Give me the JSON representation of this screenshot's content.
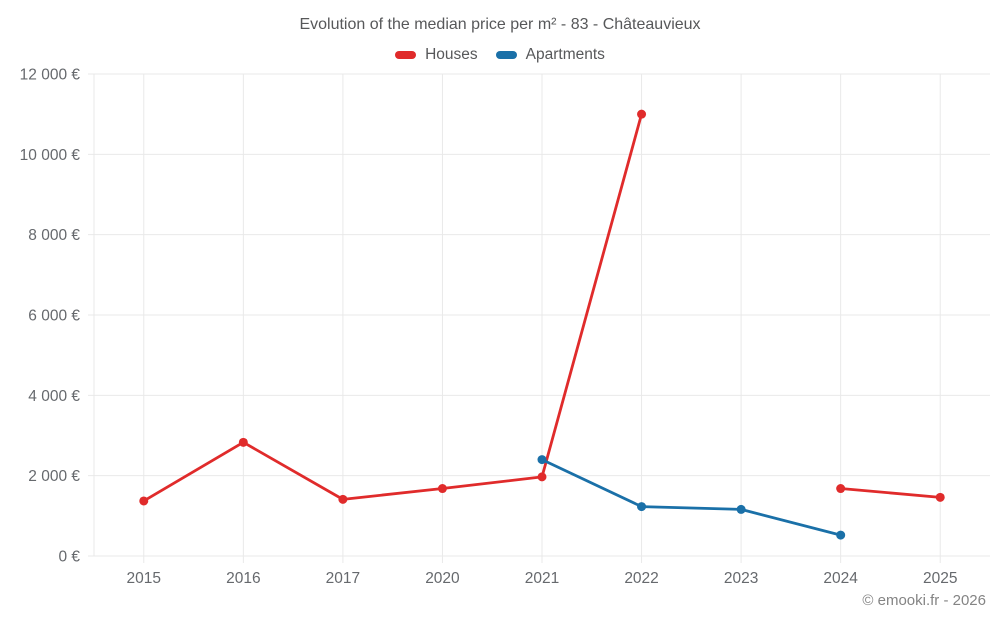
{
  "title": "Evolution of the median price per m² - 83 - Châteauvieux",
  "attribution": "© emooki.fr - 2026",
  "colors": {
    "background": "#ffffff",
    "grid": "#e9e9e9",
    "title_text": "#57585a",
    "axis_text": "#66696d",
    "attribution_text": "#848484"
  },
  "chart_data": {
    "type": "line",
    "title": "Evolution of the median price per m² - 83 - Châteauvieux",
    "categories": [
      "2015",
      "2016",
      "2017",
      "2020",
      "2021",
      "2022",
      "2023",
      "2024",
      "2025"
    ],
    "series": [
      {
        "name": "Houses",
        "color": "#e02b2b",
        "values": [
          1370,
          2830,
          1410,
          1680,
          1970,
          11000,
          null,
          1680,
          1460
        ]
      },
      {
        "name": "Apartments",
        "color": "#1a70a8",
        "values": [
          null,
          null,
          null,
          null,
          2400,
          1230,
          1160,
          520,
          null
        ]
      }
    ],
    "xlabel": "",
    "ylabel": "",
    "ylim": [
      0,
      12000
    ],
    "ytick_step": 2000,
    "ytick_labels": [
      "0 €",
      "2 000 €",
      "4 000 €",
      "6 000 €",
      "8 000 €",
      "10 000 €",
      "12 000 €"
    ],
    "grid": true,
    "legend_position": "top"
  }
}
